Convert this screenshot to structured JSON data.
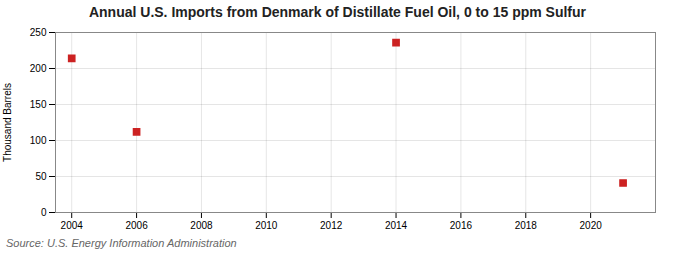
{
  "chart_data": {
    "type": "scatter",
    "title": "Annual U.S. Imports from Denmark of Distillate Fuel Oil, 0 to 15 ppm Sulfur",
    "ylabel": "Thousand Barrels",
    "annotation": "Source: U.S. Energy Information Administration",
    "x": [
      2004,
      2006,
      2014,
      2021
    ],
    "values": [
      214,
      112,
      236,
      41
    ],
    "color": "#cc2222",
    "marker": "square",
    "xlim": [
      2003.5,
      2022
    ],
    "ylim": [
      0,
      250
    ],
    "xticks": [
      2004,
      2006,
      2008,
      2010,
      2012,
      2014,
      2016,
      2018,
      2020
    ],
    "yticks": [
      0,
      50,
      100,
      150,
      200,
      250
    ],
    "grid": true
  }
}
